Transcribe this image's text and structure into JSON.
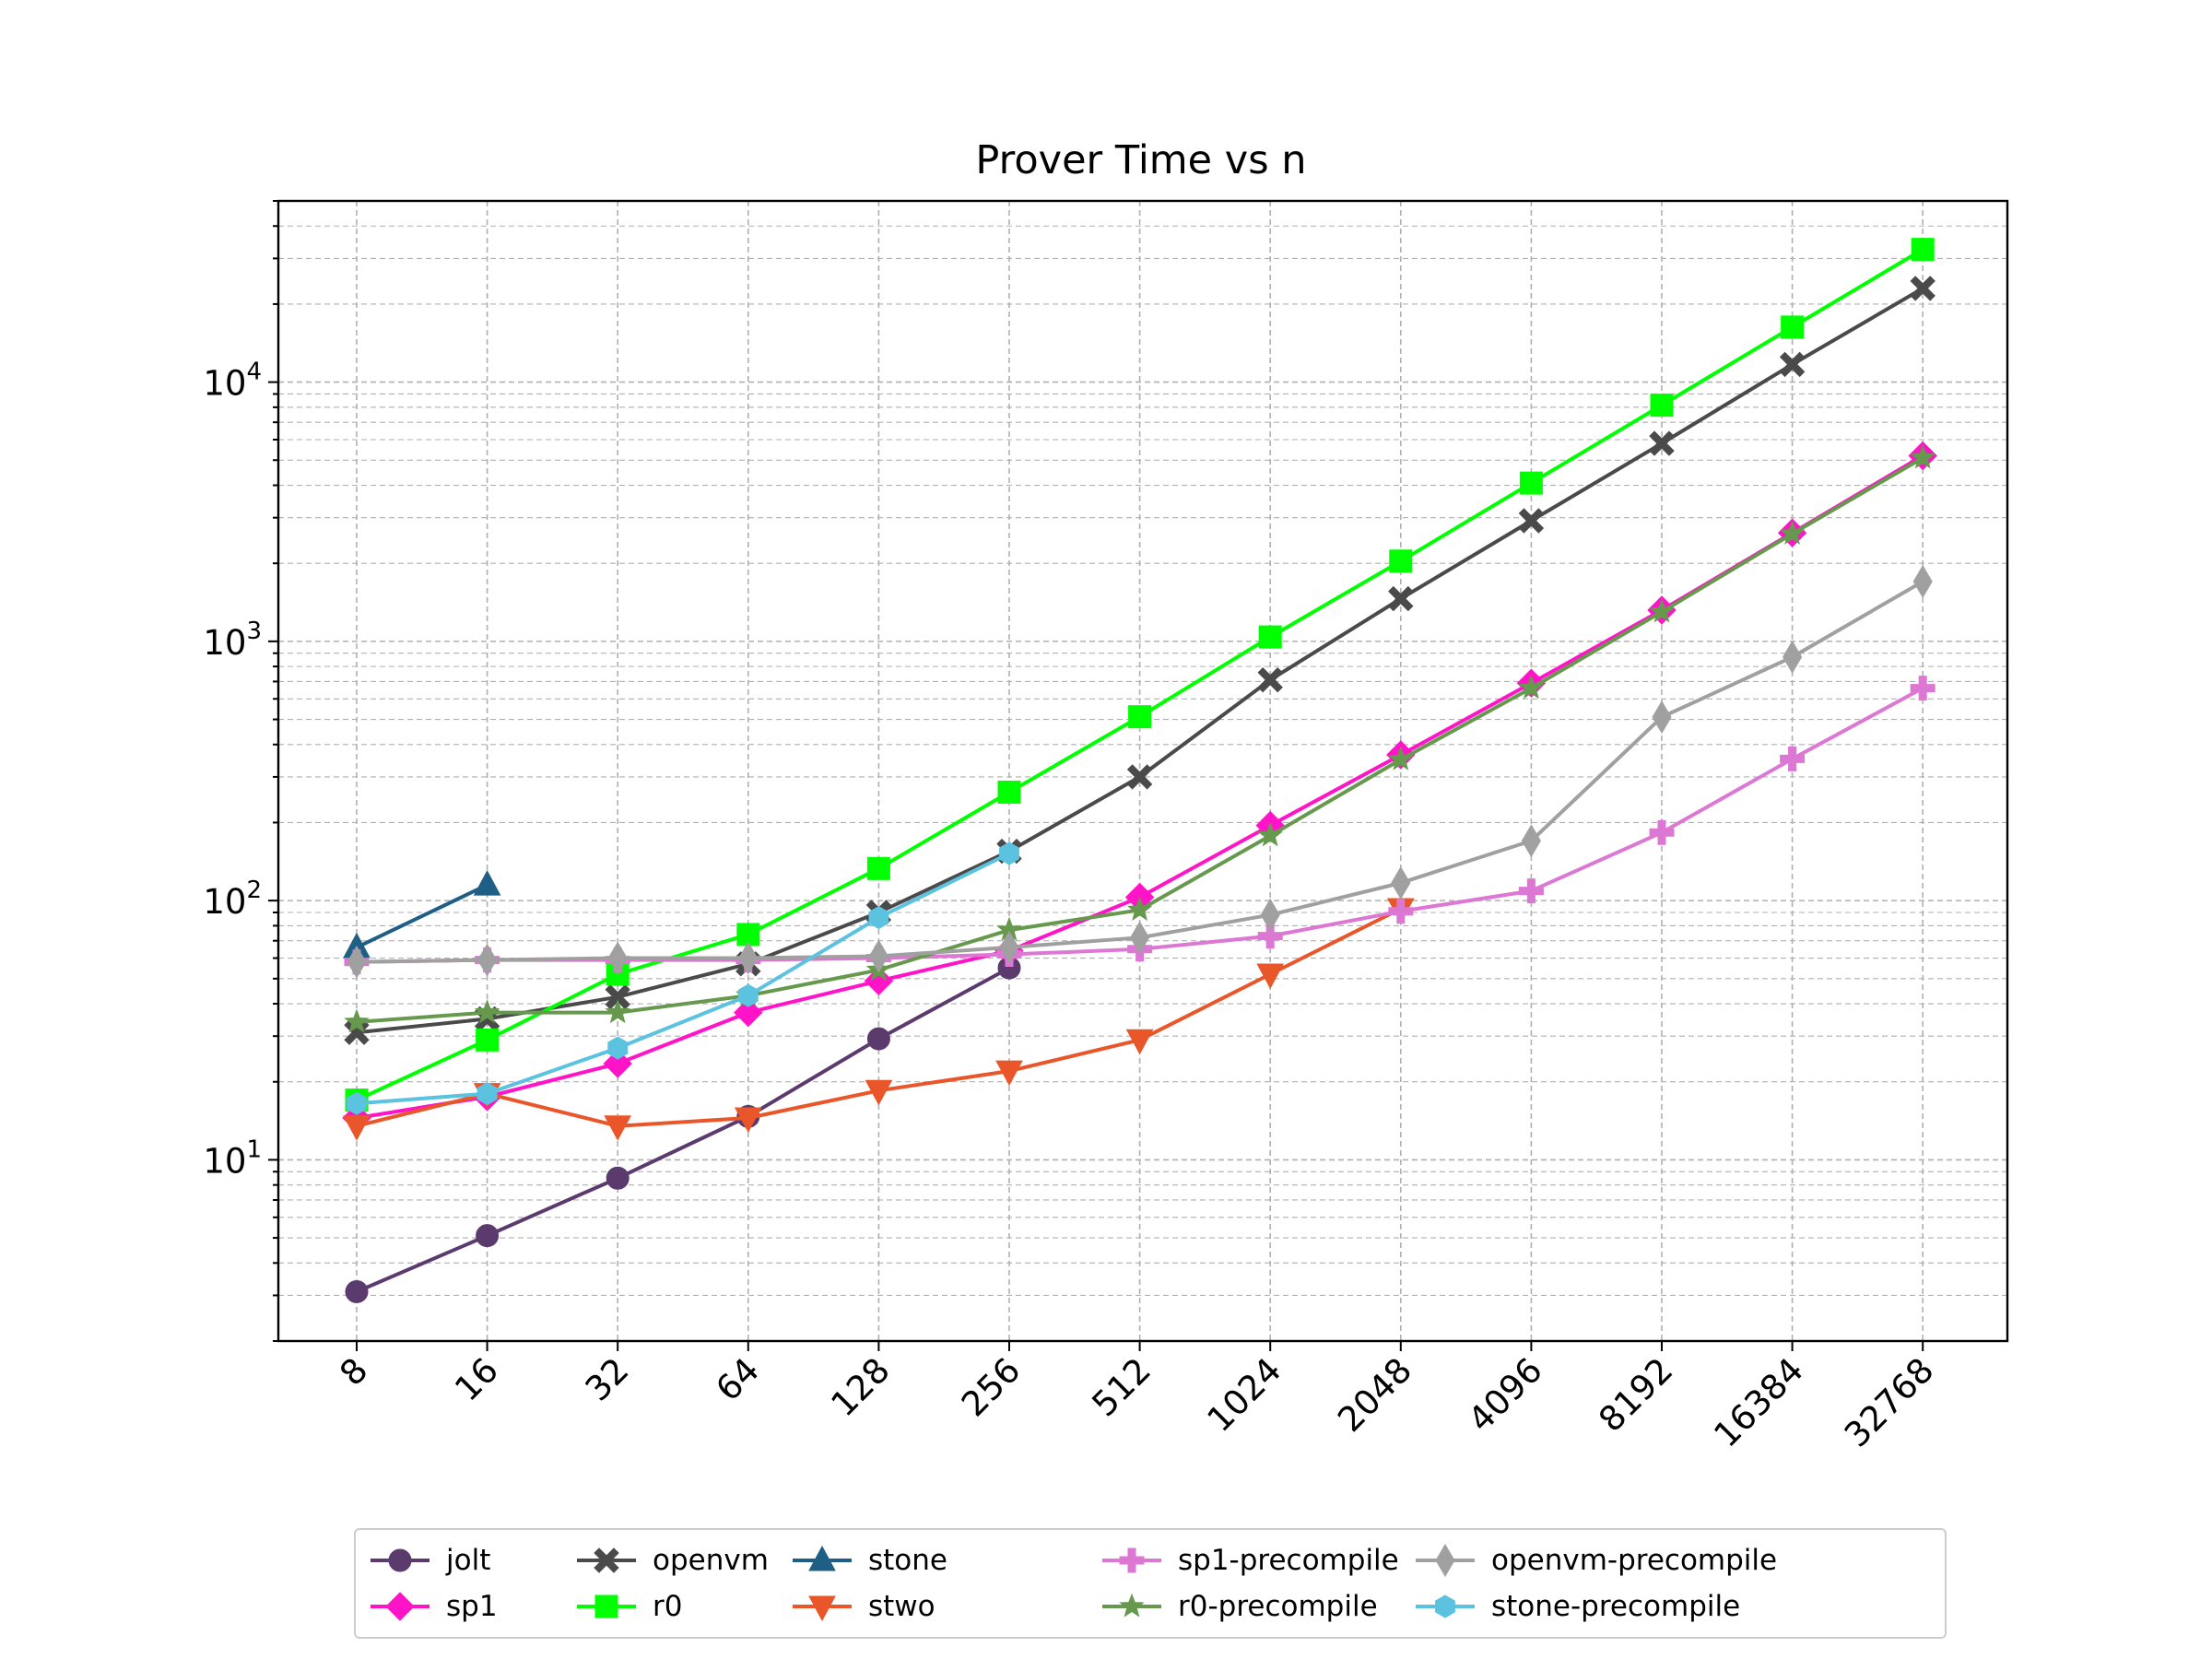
{
  "chart_data": {
    "type": "line",
    "title": "Prover Time vs n",
    "xlabel": "",
    "ylabel": "",
    "x_scale": "categorical",
    "y_scale": "log",
    "ylim": [
      2.0,
      50000
    ],
    "grid": true,
    "legend_position": "bottom-center",
    "categories": [
      "8",
      "16",
      "32",
      "64",
      "128",
      "256",
      "512",
      "1024",
      "2048",
      "4096",
      "8192",
      "16384",
      "32768"
    ],
    "y_ticks": [
      {
        "value": 10,
        "base": "10",
        "exp": "1"
      },
      {
        "value": 100,
        "base": "10",
        "exp": "2"
      },
      {
        "value": 1000,
        "base": "10",
        "exp": "3"
      },
      {
        "value": 10000,
        "base": "10",
        "exp": "4"
      }
    ],
    "series": [
      {
        "name": "jolt",
        "color": "#5b3a6e",
        "marker": "circle",
        "values": [
          3.1,
          5.1,
          8.5,
          14.7,
          29.3,
          55.0,
          null,
          null,
          null,
          null,
          null,
          null,
          null
        ]
      },
      {
        "name": "sp1",
        "color": "#ff14c8",
        "marker": "diamond",
        "values": [
          14.5,
          17.5,
          23.5,
          37.0,
          49.0,
          64.0,
          103.0,
          195.0,
          365.0,
          690.0,
          1320.0,
          2620.0,
          5200.0
        ]
      },
      {
        "name": "openvm",
        "color": "#4a4a4a",
        "marker": "x",
        "values": [
          31.0,
          35.0,
          42.5,
          57.0,
          90.0,
          155.0,
          300.0,
          710.0,
          1460.0,
          2920.0,
          5800.0,
          11700.0,
          23000.0
        ]
      },
      {
        "name": "r0",
        "color": "#00ff00",
        "marker": "square",
        "values": [
          17.0,
          29.0,
          52.0,
          74.0,
          133.0,
          262.0,
          512.0,
          1040.0,
          2040.0,
          4080.0,
          8150.0,
          16300.0,
          32500.0
        ]
      },
      {
        "name": "stone",
        "color": "#1f5f85",
        "marker": "triangle-up",
        "values": [
          66.0,
          115.0,
          null,
          null,
          null,
          null,
          null,
          null,
          null,
          null,
          null,
          null,
          null
        ]
      },
      {
        "name": "stwo",
        "color": "#e8562a",
        "marker": "triangle-down",
        "values": [
          13.5,
          18.0,
          13.5,
          14.5,
          18.5,
          22.0,
          29.0,
          52.0,
          93.0,
          null,
          null,
          null,
          null
        ]
      },
      {
        "name": "sp1-precompile",
        "color": "#dd77d4",
        "marker": "plus",
        "values": [
          58.0,
          59.0,
          59.0,
          59.0,
          60.0,
          62.0,
          65.0,
          73.0,
          91.0,
          109.0,
          183.0,
          352.0,
          660.0
        ]
      },
      {
        "name": "r0-precompile",
        "color": "#66994d",
        "marker": "star",
        "values": [
          34.0,
          37.0,
          37.0,
          43.0,
          54.0,
          77.0,
          92.0,
          178.0,
          350.0,
          660.0,
          1300.0,
          2600.0,
          5100.0
        ]
      },
      {
        "name": "openvm-precompile",
        "color": "#a0a0a0",
        "marker": "thin-diamond",
        "values": [
          58.0,
          59.0,
          60.0,
          60.0,
          61.0,
          66.0,
          72.0,
          88.0,
          117.0,
          170.0,
          510.0,
          870.0,
          1700.0
        ]
      },
      {
        "name": "stone-precompile",
        "color": "#5bc2e0",
        "marker": "hexagon",
        "values": [
          16.5,
          18.0,
          27.0,
          43.0,
          86.0,
          152.0,
          null,
          null,
          null,
          null,
          null,
          null,
          null
        ]
      }
    ]
  }
}
